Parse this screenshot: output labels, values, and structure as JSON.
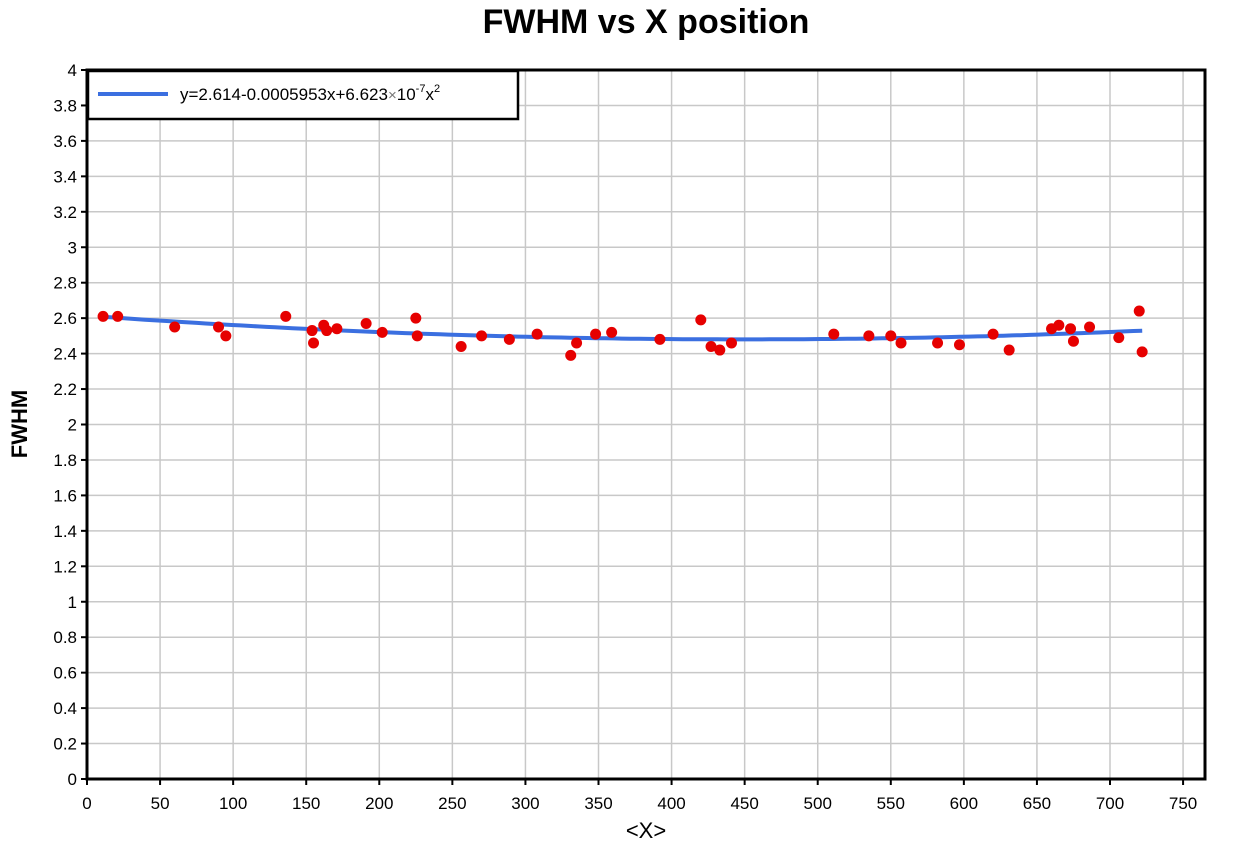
{
  "chart_data": {
    "type": "scatter",
    "title": "FWHM vs X position",
    "xlabel": "<X>",
    "ylabel": "FWHM",
    "xlim": [
      0,
      765
    ],
    "ylim": [
      0,
      4
    ],
    "x_ticks": [
      "0",
      "50",
      "100",
      "150",
      "200",
      "250",
      "300",
      "350",
      "400",
      "450",
      "500",
      "550",
      "600",
      "650",
      "700",
      "750"
    ],
    "y_ticks": [
      "0",
      "0.2",
      "0.4",
      "0.6",
      "0.8",
      "1",
      "1.2",
      "1.4",
      "1.6",
      "1.8",
      "2",
      "2.2",
      "2.4",
      "2.6",
      "2.8",
      "3",
      "3.2",
      "3.4",
      "3.6",
      "3.8",
      "4"
    ],
    "grid": true,
    "legend": "top-left",
    "fit": {
      "label_parts": {
        "main": "y=2.614-0.0005953x+6.623",
        "times": "×",
        "ten": "10",
        "exp": "-7",
        "x": "x",
        "exp2": "2"
      },
      "coefficients": [
        2.614,
        -0.0005953,
        6.623e-07
      ],
      "x_range": [
        10,
        722
      ],
      "color": "#3b6fe0"
    },
    "points_color": "#e60000",
    "points": [
      [
        11,
        2.61
      ],
      [
        21,
        2.61
      ],
      [
        60,
        2.55
      ],
      [
        90,
        2.55
      ],
      [
        95,
        2.5
      ],
      [
        136,
        2.61
      ],
      [
        154,
        2.53
      ],
      [
        155,
        2.46
      ],
      [
        162,
        2.56
      ],
      [
        164,
        2.53
      ],
      [
        171,
        2.54
      ],
      [
        191,
        2.57
      ],
      [
        202,
        2.52
      ],
      [
        225,
        2.6
      ],
      [
        226,
        2.5
      ],
      [
        256,
        2.44
      ],
      [
        270,
        2.5
      ],
      [
        289,
        2.48
      ],
      [
        308,
        2.51
      ],
      [
        331,
        2.39
      ],
      [
        335,
        2.46
      ],
      [
        348,
        2.51
      ],
      [
        359,
        2.52
      ],
      [
        392,
        2.48
      ],
      [
        420,
        2.59
      ],
      [
        427,
        2.44
      ],
      [
        433,
        2.42
      ],
      [
        441,
        2.46
      ],
      [
        511,
        2.51
      ],
      [
        535,
        2.5
      ],
      [
        550,
        2.5
      ],
      [
        557,
        2.46
      ],
      [
        582,
        2.46
      ],
      [
        597,
        2.45
      ],
      [
        620,
        2.51
      ],
      [
        631,
        2.42
      ],
      [
        660,
        2.54
      ],
      [
        665,
        2.56
      ],
      [
        673,
        2.54
      ],
      [
        675,
        2.47
      ],
      [
        686,
        2.55
      ],
      [
        706,
        2.49
      ],
      [
        720,
        2.64
      ],
      [
        722,
        2.41
      ]
    ]
  }
}
